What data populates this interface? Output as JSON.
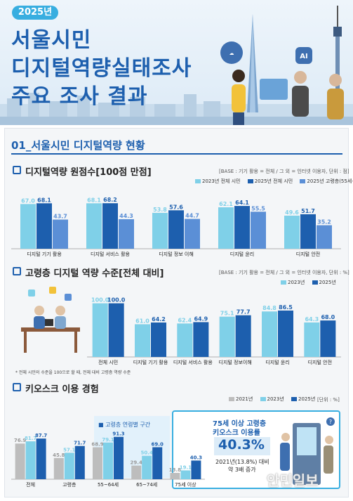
{
  "header": {
    "year_badge": "2025년",
    "title_lines": [
      "서울시민",
      "디지털역량실태조사",
      "주요 조사 결과"
    ]
  },
  "section": {
    "title": "01_서울시민 디지털역량 현황"
  },
  "colors": {
    "c2023": "#7fd0e8",
    "c2025": "#1d5fae",
    "c2025_senior": "#5b8fd6",
    "c2021": "#bdbdbd",
    "accent": "#38aee0"
  },
  "chart1_labels": {
    "title": "디지털역량 원점수[100점 만점]",
    "base": "[BASE : 기기 활용 = 전체 / 그 외 = 인터넷 이용자, 단위 : 점]",
    "legend": [
      "2023년 전체 시민",
      "2025년 전체 시민",
      "2025년 고령층(55세+)"
    ]
  },
  "chart2_labels": {
    "title": "고령층 디지털 역량 수준[전체 대비]",
    "base": "[BASE : 기기 활용 = 전체 / 그 외 = 인터넷 이용자, 단위 : %]",
    "legend": [
      "2023년",
      "2025년"
    ],
    "footnote": "* 전체 시민의 수준을 100으로 할 때, 전체 대비 고령층 역량 수준"
  },
  "chart3_labels": {
    "title": "키오스크 이용 경험",
    "legend": [
      "2021년",
      "2023년",
      "2025년"
    ],
    "unit": "[단위 : %]",
    "group_label": "■ 고령층 연령별 구간"
  },
  "callout": {
    "line1": "75세 이상 고령층",
    "line2": "키오스크 이용률",
    "percent": "40.3%",
    "note1": "2021년(13.8%) 대비",
    "note2": "약 3배 증가"
  },
  "watermark": "안민일보",
  "chart_data": [
    {
      "type": "bar",
      "title": "디지털역량 원점수[100점 만점]",
      "categories": [
        "디지털 기기 활용",
        "디지털 서비스 활용",
        "디지털 정보 이해",
        "디지털 윤리",
        "디지털 안전"
      ],
      "series": [
        {
          "name": "2023년 전체 시민",
          "values": [
            67.0,
            68.1,
            53.8,
            62.1,
            49.6
          ]
        },
        {
          "name": "2025년 전체 시민",
          "values": [
            68.1,
            68.2,
            57.6,
            64.1,
            51.7
          ]
        },
        {
          "name": "2025년 고령층(55세+)",
          "values": [
            43.7,
            44.3,
            44.7,
            55.5,
            35.2
          ]
        }
      ],
      "ylim": [
        0,
        80
      ]
    },
    {
      "type": "bar",
      "title": "고령층 디지털 역량 수준[전체 대비]",
      "categories": [
        "전체 시민",
        "디지털 기기 활용",
        "디지털 서비스 활용",
        "디지털 정보이해",
        "디지털 윤리",
        "디지털 안전"
      ],
      "series": [
        {
          "name": "2023년",
          "values": [
            100.0,
            61.0,
            62.4,
            75.1,
            84.8,
            64.3
          ]
        },
        {
          "name": "2025년",
          "values": [
            100.0,
            64.2,
            64.9,
            77.7,
            86.5,
            68.0
          ]
        }
      ],
      "ylim": [
        0,
        110
      ]
    },
    {
      "type": "bar",
      "title": "키오스크 이용 경험",
      "categories": [
        "전체",
        "고령층",
        "55~64세",
        "65~74세",
        "75세 이상"
      ],
      "series": [
        {
          "name": "2021년",
          "values": [
            76.9,
            45.8,
            68.9,
            29.4,
            13.8
          ]
        },
        {
          "name": "2023년",
          "values": [
            81.7,
            57.1,
            79.1,
            50.4,
            19.1
          ]
        },
        {
          "name": "2025년",
          "values": [
            87.7,
            71.7,
            91.3,
            69.0,
            40.3
          ]
        }
      ],
      "ylim": [
        0,
        100
      ]
    }
  ]
}
